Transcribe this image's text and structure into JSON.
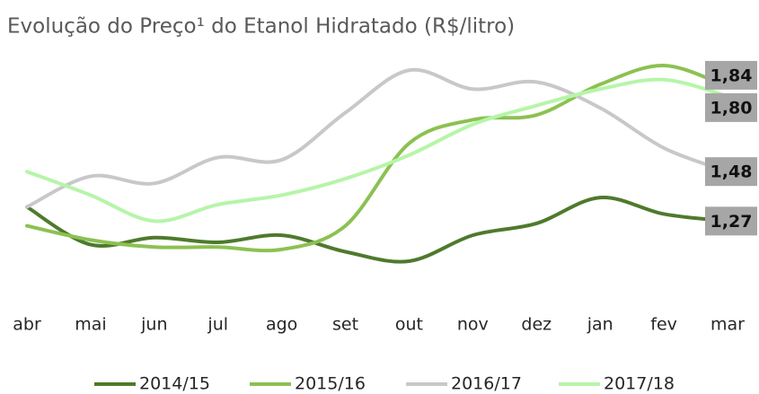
{
  "chart_data": {
    "type": "line",
    "title": "Evolução do Preço¹ do Etanol Hidratado (R$/litro)",
    "categories": [
      "abr",
      "mai",
      "jun",
      "jul",
      "ago",
      "set",
      "out",
      "nov",
      "dez",
      "jan",
      "fev",
      "mar"
    ],
    "series": [
      {
        "name": "2014/15",
        "color": "#4e7a2d",
        "values": [
          1.33,
          1.17,
          1.2,
          1.18,
          1.21,
          1.14,
          1.1,
          1.21,
          1.26,
          1.37,
          1.3,
          1.27
        ],
        "value_labels": [
          null,
          null,
          null,
          null,
          null,
          null,
          null,
          null,
          null,
          null,
          null,
          "1,27"
        ]
      },
      {
        "name": "2015/16",
        "color": "#8cc152",
        "values": [
          1.25,
          1.19,
          1.16,
          1.16,
          1.15,
          1.25,
          1.6,
          1.7,
          1.72,
          1.85,
          1.93,
          1.84
        ],
        "value_labels": [
          null,
          null,
          null,
          null,
          null,
          null,
          null,
          null,
          null,
          null,
          null,
          "1,84"
        ]
      },
      {
        "name": "2016/17",
        "color": "#c8c8c8",
        "values": [
          1.33,
          1.46,
          1.43,
          1.54,
          1.53,
          1.73,
          1.91,
          1.83,
          1.86,
          1.75,
          1.58,
          1.48
        ],
        "value_labels": [
          null,
          null,
          null,
          null,
          null,
          null,
          null,
          null,
          null,
          null,
          null,
          "1,48"
        ]
      },
      {
        "name": "2017/18",
        "color": "#b6f5a8",
        "values": [
          1.48,
          1.38,
          1.27,
          1.34,
          1.38,
          1.45,
          1.55,
          1.68,
          1.76,
          1.83,
          1.87,
          1.8
        ],
        "value_labels": [
          null,
          null,
          null,
          null,
          null,
          null,
          null,
          null,
          null,
          null,
          null,
          "1,80"
        ]
      }
    ]
  }
}
